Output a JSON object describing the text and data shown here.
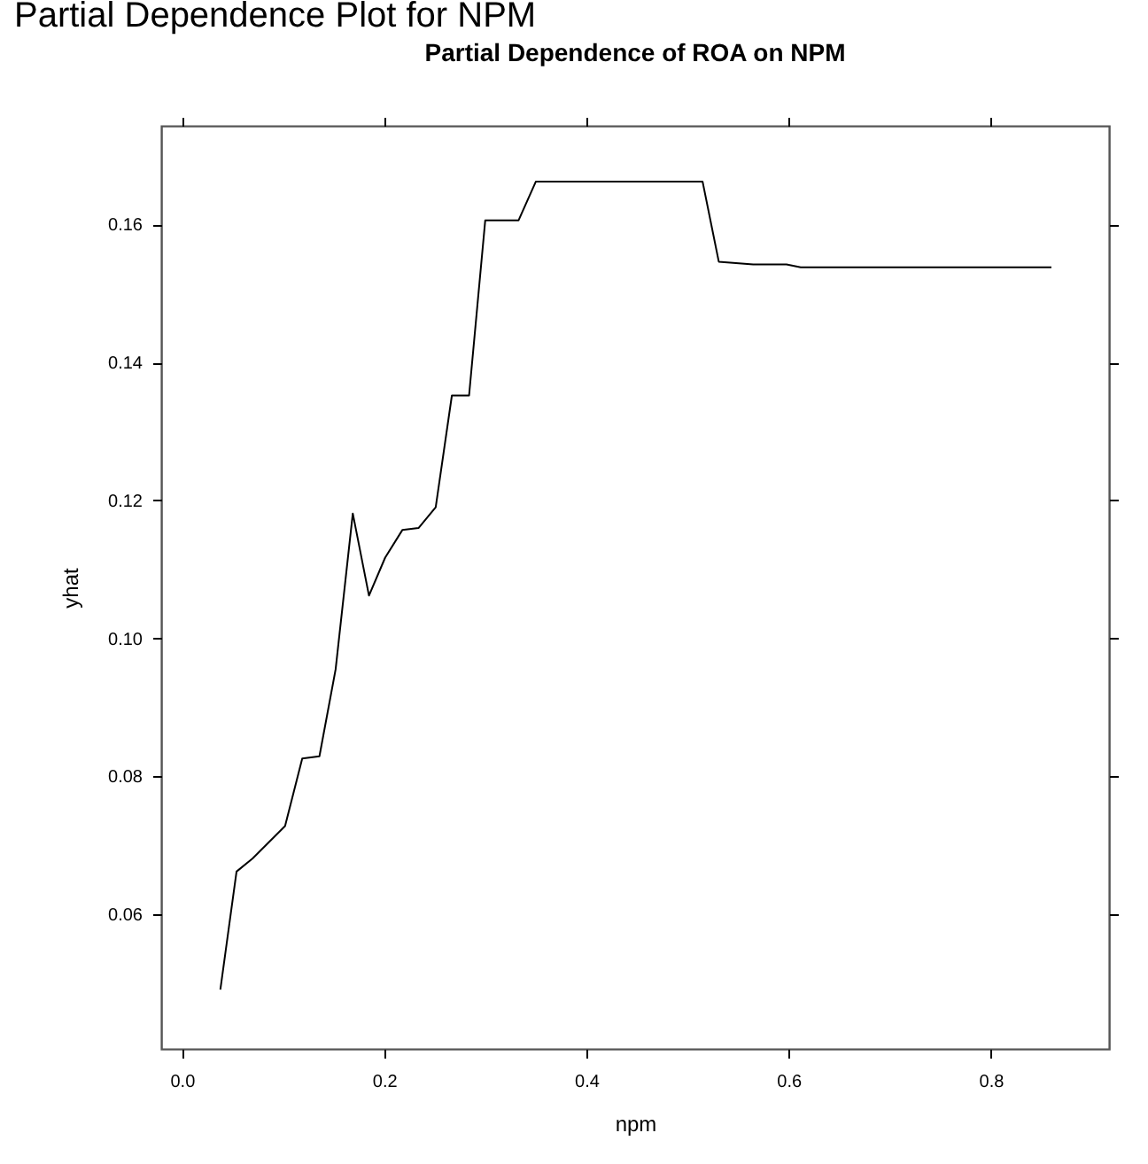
{
  "chart_data": {
    "type": "line",
    "title": "Partial Dependence of ROA on NPM",
    "xlabel": "npm",
    "ylabel": "yhat",
    "annotations": [
      "Partial Dependence Plot for NPM"
    ],
    "x": [
      0.038,
      0.054,
      0.07,
      0.102,
      0.119,
      0.136,
      0.152,
      0.169,
      0.185,
      0.201,
      0.218,
      0.234,
      0.251,
      0.267,
      0.284,
      0.3,
      0.333,
      0.35,
      0.515,
      0.531,
      0.565,
      0.598,
      0.612,
      0.86
    ],
    "values": [
      0.0491,
      0.0662,
      0.0681,
      0.0728,
      0.0826,
      0.0829,
      0.0955,
      0.1181,
      0.1062,
      0.1117,
      0.1157,
      0.116,
      0.119,
      0.1352,
      0.1352,
      0.1606,
      0.1606,
      0.1662,
      0.1662,
      0.1546,
      0.1542,
      0.1542,
      0.1538,
      0.1538
    ],
    "color": "#000000",
    "xlim": [
      -0.0205,
      0.917
    ],
    "ylim": [
      0.0405,
      0.1743
    ],
    "xticks": [
      {
        "value": 0,
        "label": "0.0"
      },
      0.2,
      0.4,
      0.6,
      0.8
    ],
    "yticks": [
      0.06,
      0.08,
      {
        "value": 0.1,
        "label": "0.10"
      },
      0.12,
      0.14,
      0.16
    ]
  }
}
